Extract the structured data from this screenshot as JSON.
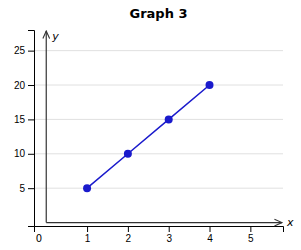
{
  "chart_data": {
    "type": "line",
    "title": "Graph 3",
    "x": [
      1,
      2,
      3,
      4
    ],
    "values": [
      5,
      10,
      15,
      20
    ],
    "color": "#1a1aCC",
    "marker": "circle",
    "xlabel": "x",
    "ylabel": "y",
    "xlim": [
      -0.3,
      5.8
    ],
    "ylim": [
      -0.5,
      28
    ],
    "xticks": [
      1,
      2,
      3,
      4,
      5
    ],
    "yticks": [
      5,
      10,
      15,
      20,
      25
    ],
    "grid": true,
    "annotations": [
      {
        "text": "0",
        "x": 0,
        "y": 0
      }
    ]
  }
}
